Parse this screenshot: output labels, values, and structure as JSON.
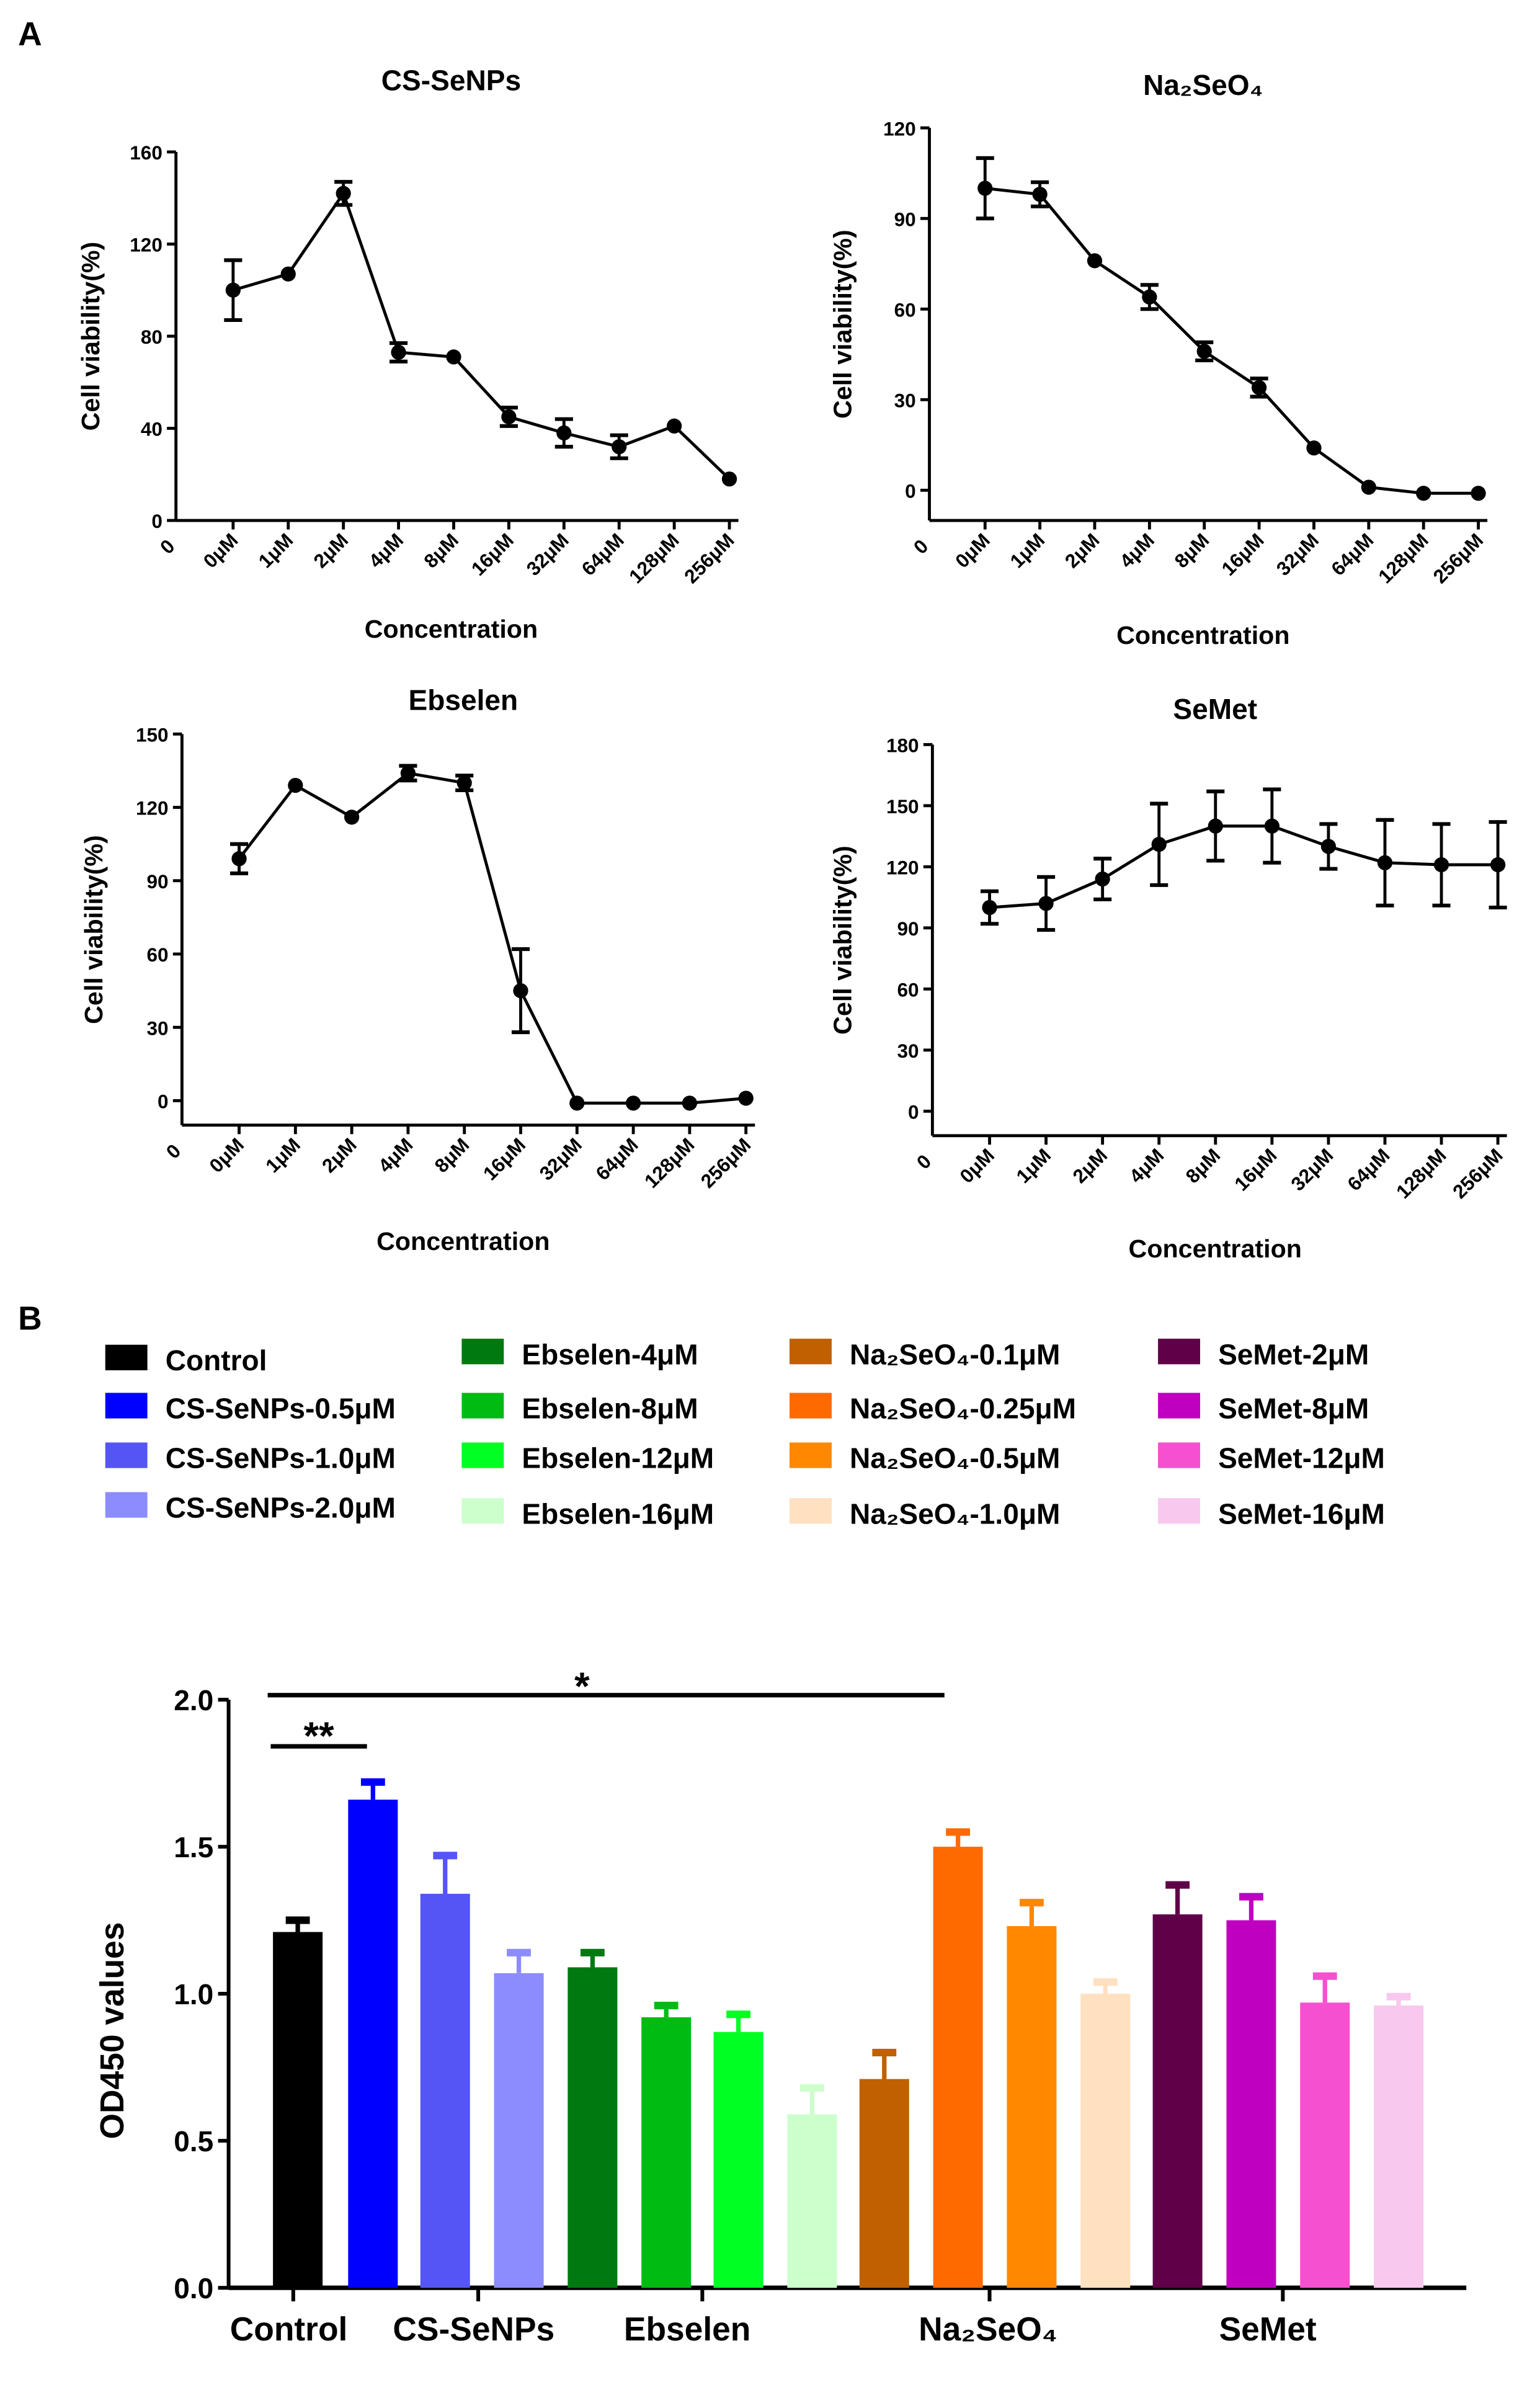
{
  "panel_labels": {
    "a": "A",
    "b": "B"
  },
  "chart_data": [
    {
      "type": "line",
      "title": "CS-SeNPs",
      "xlabel": "Concentration",
      "ylabel": "Cell viability(%)",
      "categories": [
        "0μM",
        "1μM",
        "2μM",
        "4μM",
        "8μM",
        "16μM",
        "32μM",
        "64μM",
        "128μM",
        "256μM"
      ],
      "x_origin_label": "0",
      "values": [
        100,
        107,
        142,
        73,
        71,
        45,
        38,
        32,
        41,
        18
      ],
      "errors": [
        13,
        0,
        5,
        4,
        0,
        4,
        6,
        5,
        0,
        0
      ],
      "ylim": [
        0,
        160
      ],
      "yticks": [
        0,
        40,
        80,
        120,
        160
      ]
    },
    {
      "type": "line",
      "title": "Na₂SeO₄",
      "xlabel": "Concentration",
      "ylabel": "Cell viability(%)",
      "categories": [
        "0μM",
        "1μM",
        "2μM",
        "4μM",
        "8μM",
        "16μM",
        "32μM",
        "64μM",
        "128μM",
        "256μM"
      ],
      "x_origin_label": "0",
      "values": [
        100,
        98,
        76,
        64,
        46,
        34,
        14,
        1,
        -1,
        -1
      ],
      "errors": [
        10,
        4,
        0,
        4,
        3,
        3,
        0,
        0,
        0,
        0
      ],
      "ylim": [
        -10,
        120
      ],
      "yticks": [
        0,
        30,
        60,
        90,
        120
      ]
    },
    {
      "type": "line",
      "title": "Ebselen",
      "xlabel": "Concentration",
      "ylabel": "Cell viability(%)",
      "categories": [
        "0μM",
        "1μM",
        "2μM",
        "4μM",
        "8μM",
        "16μM",
        "32μM",
        "64μM",
        "128μM",
        "256μM"
      ],
      "x_origin_label": "0",
      "values": [
        99,
        129,
        116,
        134,
        130,
        45,
        -1,
        -1,
        -1,
        1
      ],
      "errors": [
        6,
        0,
        0,
        3,
        3,
        17,
        0,
        0,
        0,
        0
      ],
      "ylim": [
        -10,
        150
      ],
      "yticks": [
        0,
        30,
        60,
        90,
        120,
        150
      ]
    },
    {
      "type": "line",
      "title": "SeMet",
      "xlabel": "Concentration",
      "ylabel": "Cell viability(%)",
      "categories": [
        "0μM",
        "1μM",
        "2μM",
        "4μM",
        "8μM",
        "16μM",
        "32μM",
        "64μM",
        "128μM",
        "256μM"
      ],
      "x_origin_label": "0",
      "values": [
        100,
        102,
        114,
        131,
        140,
        140,
        130,
        122,
        121,
        121
      ],
      "errors": [
        8,
        13,
        10,
        20,
        17,
        18,
        11,
        21,
        20,
        21
      ],
      "ylim": [
        -12,
        180
      ],
      "yticks": [
        0,
        30,
        60,
        90,
        120,
        150,
        180
      ]
    },
    {
      "type": "bar",
      "ylabel": "OD450 values",
      "ylim": [
        0,
        2.0
      ],
      "yticks": [
        "0.0",
        "0.5",
        "1.0",
        "1.5",
        "2.0"
      ],
      "group_labels": [
        "Control",
        "CS-SeNPs",
        "Ebselen",
        "Na₂SeO₄",
        "SeMet"
      ],
      "series": [
        {
          "name": "Control",
          "value": 1.21,
          "error": 0.04,
          "color": "#000000"
        },
        {
          "name": "CS-SeNPs-0.5μM",
          "value": 1.66,
          "error": 0.06,
          "color": "#0000ff"
        },
        {
          "name": "CS-SeNPs-1.0μM",
          "value": 1.34,
          "error": 0.13,
          "color": "#5555f5"
        },
        {
          "name": "CS-SeNPs-2.0μM",
          "value": 1.07,
          "error": 0.07,
          "color": "#8c8cff"
        },
        {
          "name": "Ebselen-4μM",
          "value": 1.09,
          "error": 0.05,
          "color": "#007a10"
        },
        {
          "name": "Ebselen-8μM",
          "value": 0.92,
          "error": 0.04,
          "color": "#00bb12"
        },
        {
          "name": "Ebselen-12μM",
          "value": 0.87,
          "error": 0.06,
          "color": "#00ff22"
        },
        {
          "name": "Ebselen-16μM",
          "value": 0.59,
          "error": 0.09,
          "color": "#ccffcc"
        },
        {
          "name": "Na₂SeO₄-0.1μM",
          "value": 0.71,
          "error": 0.09,
          "color": "#c06000"
        },
        {
          "name": "Na₂SeO₄-0.25μM",
          "value": 1.5,
          "error": 0.05,
          "color": "#ff6a00"
        },
        {
          "name": "Na₂SeO₄-0.5μM",
          "value": 1.23,
          "error": 0.08,
          "color": "#ff8800"
        },
        {
          "name": "Na₂SeO₄-1.0μM",
          "value": 1.0,
          "error": 0.04,
          "color": "#ffe0c0"
        },
        {
          "name": "SeMet-2μM",
          "value": 1.27,
          "error": 0.1,
          "color": "#600048"
        },
        {
          "name": "SeMet-8μM",
          "value": 1.25,
          "error": 0.08,
          "color": "#c000c0"
        },
        {
          "name": "SeMet-12μM",
          "value": 0.97,
          "error": 0.09,
          "color": "#f550d0"
        },
        {
          "name": "SeMet-16μM",
          "value": 0.96,
          "error": 0.03,
          "color": "#f8c8ee"
        }
      ],
      "annotations": [
        {
          "text": "**",
          "from": "Control",
          "to": "CS-SeNPs-0.5μM"
        },
        {
          "text": "*",
          "from": "Control",
          "to": "Na₂SeO₄-0.25μM"
        }
      ],
      "legend": "top"
    }
  ]
}
